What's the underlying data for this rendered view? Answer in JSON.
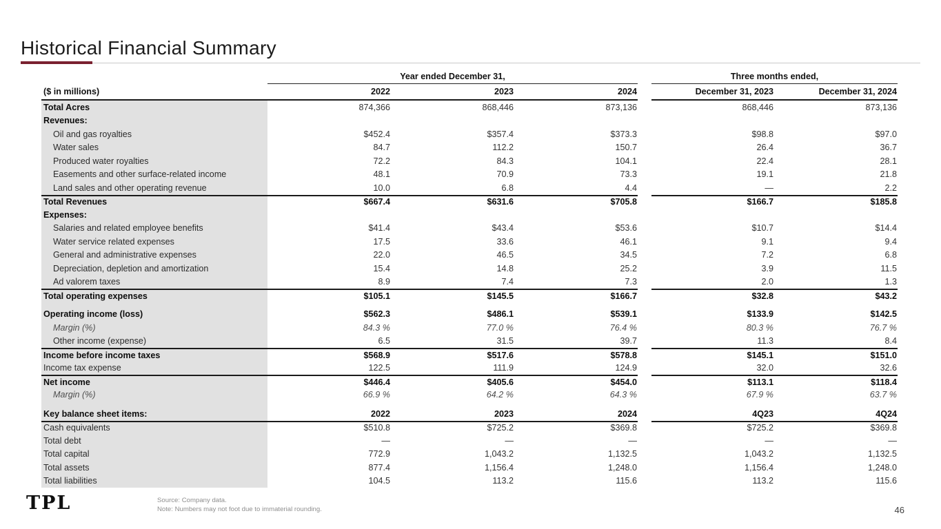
{
  "slide": {
    "title": "Historical Financial Summary",
    "page_number": "46",
    "logo_text": "TPL",
    "source_note": "Source: Company data.",
    "rounding_note": "Note: Numbers may not foot due to immaterial rounding.",
    "accent_color": "#7a2130"
  },
  "table": {
    "units_label": "($ in millions)",
    "year_group_header": "Year ended December 31,",
    "quarter_group_header": "Three months ended,",
    "year_columns": [
      "2022",
      "2023",
      "2024"
    ],
    "quarter_columns": [
      "December 31, 2023",
      "December 31, 2024"
    ],
    "rows": [
      {
        "label": "Total Acres",
        "label_bold": true,
        "values": [
          "874,366",
          "868,446",
          "873,136",
          "868,446",
          "873,136"
        ]
      },
      {
        "label": "Revenues:",
        "label_bold": true,
        "values": [
          "",
          "",
          "",
          "",
          ""
        ]
      },
      {
        "label": "Oil and gas royalties",
        "indent": true,
        "values": [
          "$452.4",
          "$357.4",
          "$373.3",
          "$98.8",
          "$97.0"
        ]
      },
      {
        "label": "Water sales",
        "indent": true,
        "values": [
          "84.7",
          "112.2",
          "150.7",
          "26.4",
          "36.7"
        ]
      },
      {
        "label": "Produced water royalties",
        "indent": true,
        "values": [
          "72.2",
          "84.3",
          "104.1",
          "22.4",
          "28.1"
        ]
      },
      {
        "label": "Easements and other surface-related income",
        "indent": true,
        "values": [
          "48.1",
          "70.9",
          "73.3",
          "19.1",
          "21.8"
        ]
      },
      {
        "label": "Land sales and other operating revenue",
        "indent": true,
        "values": [
          "10.0",
          "6.8",
          "4.4",
          "—",
          "2.2"
        ]
      },
      {
        "label": "Total Revenues",
        "label_bold": true,
        "bold": true,
        "rule_above": true,
        "values": [
          "$667.4",
          "$631.6",
          "$705.8",
          "$166.7",
          "$185.8"
        ]
      },
      {
        "label": "Expenses:",
        "label_bold": true,
        "values": [
          "",
          "",
          "",
          "",
          ""
        ]
      },
      {
        "label": "Salaries and related employee benefits",
        "indent": true,
        "values": [
          "$41.4",
          "$43.4",
          "$53.6",
          "$10.7",
          "$14.4"
        ]
      },
      {
        "label": "Water service related expenses",
        "indent": true,
        "values": [
          "17.5",
          "33.6",
          "46.1",
          "9.1",
          "9.4"
        ]
      },
      {
        "label": "General and administrative expenses",
        "indent": true,
        "values": [
          "22.0",
          "46.5",
          "34.5",
          "7.2",
          "6.8"
        ]
      },
      {
        "label": "Depreciation, depletion and amortization",
        "indent": true,
        "values": [
          "15.4",
          "14.8",
          "25.2",
          "3.9",
          "11.5"
        ]
      },
      {
        "label": "Ad valorem taxes",
        "indent": true,
        "values": [
          "8.9",
          "7.4",
          "7.3",
          "2.0",
          "1.3"
        ]
      },
      {
        "label": "Total operating expenses",
        "label_bold": true,
        "bold": true,
        "rule_above": true,
        "values": [
          "$105.1",
          "$145.5",
          "$166.7",
          "$32.8",
          "$43.2"
        ]
      },
      {
        "spacer": true
      },
      {
        "label": "Operating income (loss)",
        "label_bold": true,
        "bold": true,
        "values": [
          "$562.3",
          "$486.1",
          "$539.1",
          "$133.9",
          "$142.5"
        ]
      },
      {
        "label": "Margin (%)",
        "indent": true,
        "italic": true,
        "values": [
          "84.3 %",
          "77.0 %",
          "76.4 %",
          "80.3 %",
          "76.7 %"
        ]
      },
      {
        "label": "Other income (expense)",
        "indent": true,
        "values": [
          "6.5",
          "31.5",
          "39.7",
          "11.3",
          "8.4"
        ]
      },
      {
        "label": "Income before income taxes",
        "label_bold": true,
        "bold": true,
        "rule_above": true,
        "values": [
          "$568.9",
          "$517.6",
          "$578.8",
          "$145.1",
          "$151.0"
        ]
      },
      {
        "label": "Income tax expense",
        "values": [
          "122.5",
          "111.9",
          "124.9",
          "32.0",
          "32.6"
        ]
      },
      {
        "label": "Net income",
        "label_bold": true,
        "bold": true,
        "rule_above": true,
        "values": [
          "$446.4",
          "$405.6",
          "$454.0",
          "$113.1",
          "$118.4"
        ]
      },
      {
        "label": "Margin (%)",
        "indent": true,
        "italic": true,
        "values": [
          "66.9 %",
          "64.2 %",
          "64.3 %",
          "67.9 %",
          "63.7 %"
        ]
      },
      {
        "spacer": true
      },
      {
        "label": "Key balance sheet items:",
        "label_bold": true,
        "bold": true,
        "values": [
          "2022",
          "2023",
          "2024",
          "4Q23",
          "4Q24"
        ]
      },
      {
        "label": "Cash equivalents",
        "rule_above": true,
        "values": [
          "$510.8",
          "$725.2",
          "$369.8",
          "$725.2",
          "$369.8"
        ]
      },
      {
        "label": "Total debt",
        "values": [
          "—",
          "—",
          "—",
          "—",
          "—"
        ]
      },
      {
        "label": "Total capital",
        "values": [
          "772.9",
          "1,043.2",
          "1,132.5",
          "1,043.2",
          "1,132.5"
        ]
      },
      {
        "label": "Total assets",
        "values": [
          "877.4",
          "1,156.4",
          "1,248.0",
          "1,156.4",
          "1,248.0"
        ]
      },
      {
        "label": "Total liabilities",
        "values": [
          "104.5",
          "113.2",
          "115.6",
          "113.2",
          "115.6"
        ]
      }
    ]
  }
}
